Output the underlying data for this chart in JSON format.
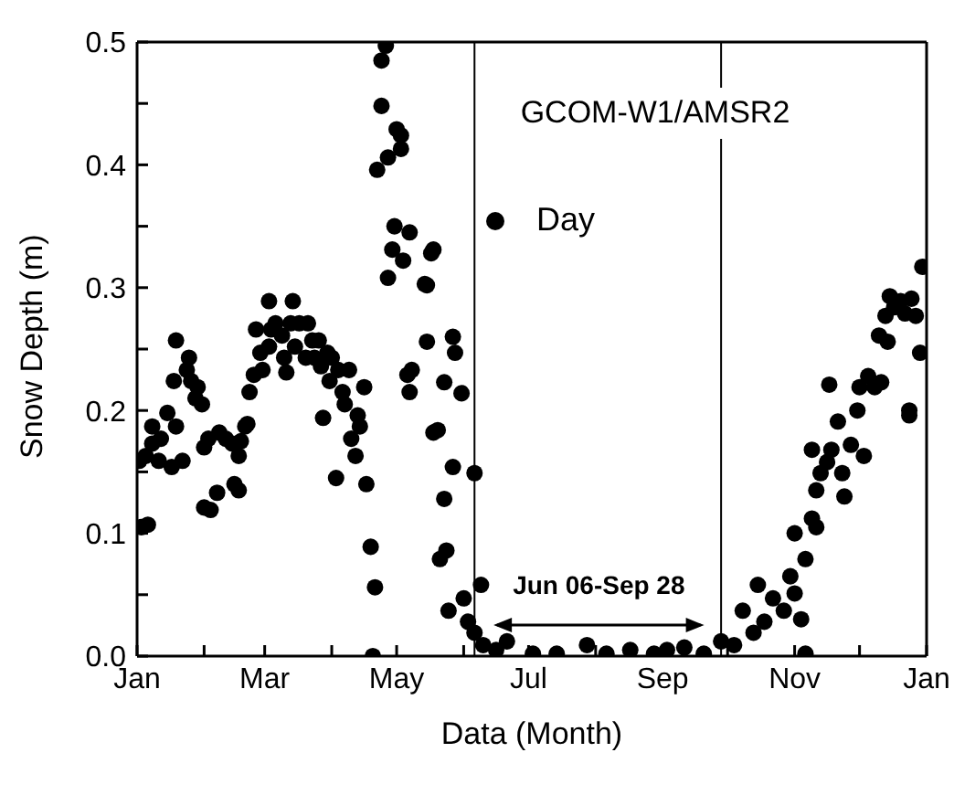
{
  "chart_data": {
    "type": "scatter",
    "title": "GCOM-W1/AMSR2",
    "xlabel": "Data (Month)",
    "ylabel": "Snow Depth (m)",
    "annotations": [
      "Jun 06-Sep 28"
    ],
    "xlim": [
      "--01-01",
      "2002-01-01"
    ],
    "xticks": [
      {
        "value": "--01-01",
        "label": "Jan"
      },
      {
        "value": "--02-01",
        "label": null
      },
      {
        "value": "--03-01",
        "label": "Mar"
      },
      {
        "value": "--04-01",
        "label": null
      },
      {
        "value": "--05-01",
        "label": "May"
      },
      {
        "value": "--06-01",
        "label": null
      },
      {
        "value": "--07-01",
        "label": "Jul"
      },
      {
        "value": "--08-01",
        "label": null
      },
      {
        "value": "--09-01",
        "label": "Sep"
      },
      {
        "value": "--10-01",
        "label": null
      },
      {
        "value": "--11-01",
        "label": "Nov"
      },
      {
        "value": "--12-01",
        "label": null
      },
      {
        "value": "2002-01-01",
        "label": "Jan"
      }
    ],
    "ylim": [
      0,
      0.5
    ],
    "yticks": [
      {
        "value": 0,
        "label": "0.0"
      },
      {
        "value": 0.05,
        "label": null
      },
      0.1,
      {
        "value": 0.15,
        "label": null
      },
      0.2,
      {
        "value": 0.25,
        "label": null
      },
      0.3,
      {
        "value": 0.35,
        "label": null
      },
      0.4,
      {
        "value": 0.45,
        "label": null
      },
      0.5
    ],
    "ref_lines": [
      {
        "axis": "x",
        "value": "--06-06",
        "color": "#000000"
      },
      {
        "axis": "x",
        "value": "--09-28",
        "color": "#000000"
      }
    ],
    "legend": "top",
    "grid": false,
    "marker": "circle",
    "series": [
      {
        "name": "Day",
        "color": "#000000",
        "x": [
          "--01-03",
          "--01-06",
          "--01-02",
          "--01-05",
          "--01-08",
          "--01-08",
          "--01-11",
          "--01-12",
          "--01-15",
          "--01-17",
          "--01-18",
          "--01-19",
          "--01-19",
          "--01-22",
          "--01-24",
          "--01-25",
          "--01-26",
          "--01-28",
          "--01-29",
          "--01-31",
          "--02-01",
          "--02-03",
          "--02-01",
          "--02-04",
          "--02-07",
          "--02-08",
          "--02-11",
          "--02-14",
          "--02-15",
          "--02-17",
          "--02-17",
          "--02-18",
          "--02-20",
          "--02-21",
          "--02-22",
          "--02-24",
          "--02-25",
          "--02-27",
          "--02-28",
          "--03-03",
          "--03-03",
          "--03-04",
          "--03-06",
          "--03-09",
          "--03-10",
          "--03-11",
          "--03-13",
          "--03-14",
          "--03-15",
          "--03-17",
          "--03-20",
          "--03-21",
          "--03-23",
          "--03-24",
          "--03-26",
          "--03-27",
          "--03-28",
          "--03-30",
          "--03-31",
          "--04-01",
          "--04-03",
          "--04-04",
          "--04-06",
          "--04-07",
          "--04-09",
          "--04-10",
          "--04-12",
          "--04-13",
          "--04-14",
          "--04-16",
          "--04-17",
          "--04-19",
          "--04-21",
          "--04-20",
          "--04-22",
          "--04-24",
          "--04-24",
          "--04-26",
          "--04-27",
          "--04-27",
          "--04-29",
          "--04-30",
          "--05-01",
          "--05-03",
          "--05-03",
          "--05-04",
          "--05-06",
          "--05-07",
          "--05-07",
          "--05-08",
          "--05-14",
          "--05-15",
          "--05-15",
          "--05-17",
          "--05-18",
          "--05-18",
          "--05-20",
          "--05-21",
          "--05-23",
          "--05-23",
          "--05-24",
          "--05-25",
          "--05-27",
          "--05-27",
          "--05-28",
          "--05-31",
          "--06-01",
          "--06-03",
          "--06-06",
          "--06-06",
          "--06-09",
          "--06-10",
          "--06-16",
          "--06-21",
          "--07-03",
          "--07-14",
          "--07-28",
          "--08-06",
          "--08-17",
          "--08-28",
          "--09-03",
          "--09-11",
          "--09-20",
          "--09-28",
          "--10-04",
          "--10-08",
          "--10-13",
          "--10-15",
          "--10-18",
          "--10-22",
          "--10-27",
          "--10-30",
          "--11-01",
          "--11-04",
          "--11-06",
          "--11-01",
          "--11-06",
          "--11-09",
          "--11-11",
          "--11-11",
          "--11-09",
          "--11-13",
          "--11-16",
          "--11-17",
          "--11-18",
          "--11-21",
          "--11-23",
          "--11-24",
          "--11-27",
          "--11-30",
          "--12-01",
          "--12-03",
          "--12-05",
          "--12-08",
          "--12-10",
          "--12-11",
          "--12-13",
          "--12-14",
          "--12-15",
          "--12-17",
          "--12-20",
          "--12-22",
          "--12-24",
          "--12-24",
          "--12-25",
          "--12-27",
          "--12-29",
          "--12-30"
        ],
        "values": [
          0.105,
          0.107,
          0.159,
          0.163,
          0.173,
          0.187,
          0.159,
          0.177,
          0.198,
          0.154,
          0.224,
          0.257,
          0.187,
          0.159,
          0.233,
          0.243,
          0.224,
          0.21,
          0.219,
          0.205,
          0.17,
          0.177,
          0.121,
          0.119,
          0.133,
          0.182,
          0.177,
          0.173,
          0.14,
          0.135,
          0.163,
          0.175,
          0.187,
          0.189,
          0.215,
          0.229,
          0.266,
          0.247,
          0.233,
          0.289,
          0.252,
          0.266,
          0.271,
          0.261,
          0.243,
          0.231,
          0.271,
          0.289,
          0.252,
          0.271,
          0.243,
          0.271,
          0.257,
          0.243,
          0.257,
          0.236,
          0.194,
          0.247,
          0.224,
          0.243,
          0.145,
          0.233,
          0.215,
          0.205,
          0.233,
          0.177,
          0.163,
          0.196,
          0.187,
          0.219,
          0.14,
          0.089,
          0.056,
          0.0,
          0.396,
          0.448,
          0.485,
          0.497,
          0.406,
          0.308,
          0.331,
          0.35,
          0.429,
          0.424,
          0.413,
          0.322,
          0.229,
          0.215,
          0.345,
          0.233,
          0.303,
          0.302,
          0.256,
          0.328,
          0.331,
          0.182,
          0.184,
          0.079,
          0.223,
          0.128,
          0.086,
          0.037,
          0.26,
          0.154,
          0.247,
          0.214,
          0.047,
          0.028,
          0.149,
          0.019,
          0.058,
          0.009,
          0.005,
          0.012,
          0.002,
          0.002,
          0.009,
          0.002,
          0.005,
          0.002,
          0.005,
          0.007,
          0.002,
          0.012,
          0.009,
          0.037,
          0.019,
          0.058,
          0.028,
          0.047,
          0.037,
          0.065,
          0.051,
          0.03,
          0.002,
          0.1,
          0.079,
          0.112,
          0.105,
          0.135,
          0.168,
          0.149,
          0.158,
          0.221,
          0.168,
          0.191,
          0.149,
          0.13,
          0.172,
          0.2,
          0.219,
          0.163,
          0.228,
          0.219,
          0.261,
          0.223,
          0.277,
          0.256,
          0.293,
          0.284,
          0.289,
          0.279,
          0.2,
          0.196,
          0.291,
          0.277,
          0.247,
          0.317
        ]
      }
    ]
  }
}
